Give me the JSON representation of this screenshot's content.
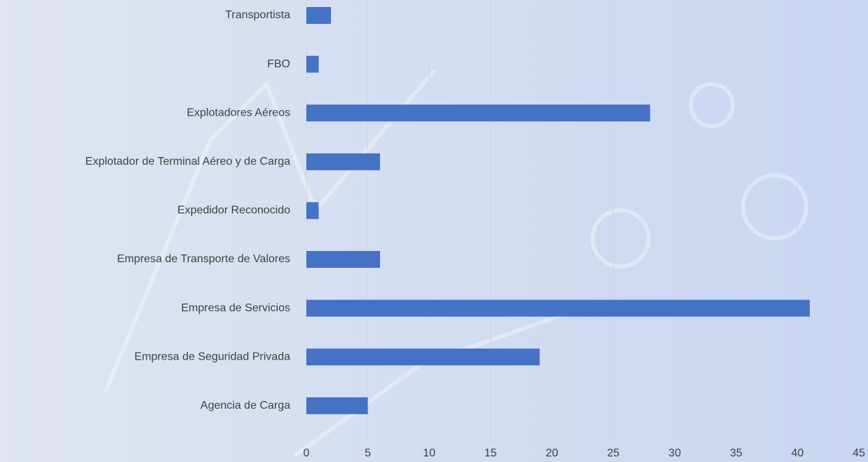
{
  "chart_data": {
    "type": "bar",
    "orientation": "horizontal",
    "categories": [
      "Transportista",
      "FBO",
      "Explotadores Aéreos",
      "Explotador de Terminal Aéreo y de Carga",
      "Expedidor Reconocido",
      "Empresa de Transporte de Valores",
      "Empresa de Servicios",
      "Empresa de Seguridad Privada",
      "Agencia de Carga"
    ],
    "values": [
      2,
      1,
      28,
      6,
      1,
      6,
      41,
      19,
      5
    ],
    "color": "#4472c4",
    "xlim": [
      0,
      45
    ],
    "xticks": [
      0,
      5,
      10,
      15,
      20,
      25,
      30,
      35,
      40,
      45
    ],
    "grid": true
  }
}
